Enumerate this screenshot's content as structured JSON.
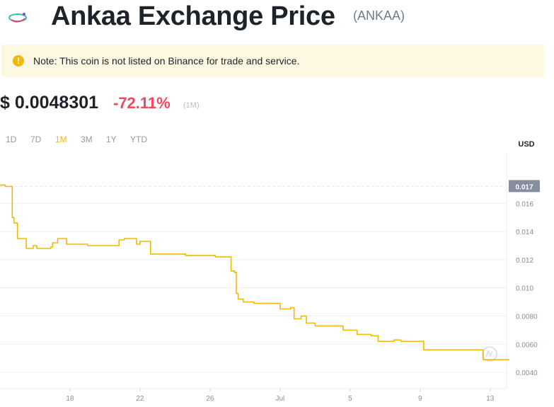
{
  "page": {
    "title": "Ankaa Exchange Price",
    "symbol": "(ANKAA)",
    "logo_icon": "ankaa-logo-icon"
  },
  "note": {
    "icon": "warning-icon",
    "text": "Note: This coin is not listed on Binance for trade and service."
  },
  "price": {
    "value": "$ 0.0048301",
    "change": "-72.11%",
    "period": "(1M)"
  },
  "ranges": [
    {
      "label": "1D",
      "active": false
    },
    {
      "label": "7D",
      "active": false
    },
    {
      "label": "1M",
      "active": true
    },
    {
      "label": "3M",
      "active": false
    },
    {
      "label": "1Y",
      "active": false
    },
    {
      "label": "YTD",
      "active": false
    }
  ],
  "colors": {
    "line": "#f0b90b",
    "negative": "#f6465d",
    "current_price_tag": "#848e9c"
  },
  "chart_data": {
    "type": "line",
    "currency_label": "USD",
    "current_tag": "0.017",
    "y_ticks": [
      "0.016",
      "0.014",
      "0.012",
      "0.010",
      "0.0080",
      "0.0060",
      "0.0040"
    ],
    "y_tick_values": [
      0.016,
      0.014,
      0.012,
      0.01,
      0.008,
      0.006,
      0.004
    ],
    "x_ticks": [
      "18",
      "22",
      "26",
      "Jul",
      "5",
      "9",
      "13"
    ],
    "x_tick_days": [
      18,
      22,
      26,
      30,
      34,
      38,
      42
    ],
    "x_range_days": [
      14.0,
      43.1
    ],
    "ylim": [
      0.00285,
      0.01953
    ],
    "watermark_icon": "coinmarketcap-watermark-icon",
    "series": [
      {
        "points": [
          [
            14.0,
            0.0173
          ],
          [
            14.3,
            0.0172
          ],
          [
            14.6,
            0.0172
          ],
          [
            14.7,
            0.015
          ],
          [
            14.8,
            0.0146
          ],
          [
            15.0,
            0.0135
          ],
          [
            15.4,
            0.0135
          ],
          [
            15.5,
            0.0128
          ],
          [
            15.9,
            0.013
          ],
          [
            16.1,
            0.0128
          ],
          [
            16.9,
            0.0129
          ],
          [
            17.0,
            0.0132
          ],
          [
            17.3,
            0.0135
          ],
          [
            17.8,
            0.0131
          ],
          [
            18.5,
            0.0131
          ],
          [
            19.0,
            0.013
          ],
          [
            20.6,
            0.013
          ],
          [
            20.8,
            0.0134
          ],
          [
            21.1,
            0.0135
          ],
          [
            21.5,
            0.0135
          ],
          [
            21.8,
            0.0131
          ],
          [
            22.0,
            0.0133
          ],
          [
            22.6,
            0.0124
          ],
          [
            23.0,
            0.0124
          ],
          [
            24.4,
            0.0124
          ],
          [
            24.6,
            0.0123
          ],
          [
            25.5,
            0.0123
          ],
          [
            26.3,
            0.0122
          ],
          [
            27.1,
            0.0122
          ],
          [
            27.2,
            0.0112
          ],
          [
            27.4,
            0.0111
          ],
          [
            27.5,
            0.0096
          ],
          [
            27.6,
            0.0092
          ],
          [
            27.9,
            0.009
          ],
          [
            28.5,
            0.0089
          ],
          [
            29.9,
            0.0089
          ],
          [
            30.0,
            0.0085
          ],
          [
            30.4,
            0.0085
          ],
          [
            30.6,
            0.0086
          ],
          [
            30.8,
            0.0078
          ],
          [
            31.2,
            0.008
          ],
          [
            31.4,
            0.008
          ],
          [
            31.5,
            0.0075
          ],
          [
            31.9,
            0.0075
          ],
          [
            32.0,
            0.0073
          ],
          [
            33.5,
            0.0073
          ],
          [
            33.6,
            0.007
          ],
          [
            34.0,
            0.007
          ],
          [
            34.4,
            0.0067
          ],
          [
            35.2,
            0.0066
          ],
          [
            35.6,
            0.0062
          ],
          [
            36.2,
            0.0062
          ],
          [
            36.5,
            0.0063
          ],
          [
            36.9,
            0.0062
          ],
          [
            38.1,
            0.0062
          ],
          [
            38.2,
            0.0056
          ],
          [
            38.6,
            0.0056
          ],
          [
            40.0,
            0.0056
          ],
          [
            41.5,
            0.0056
          ],
          [
            41.6,
            0.0049
          ],
          [
            43.1,
            0.0049
          ]
        ]
      }
    ]
  }
}
